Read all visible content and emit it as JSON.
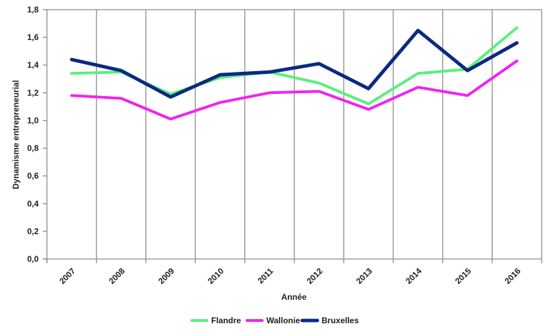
{
  "chart_data": {
    "type": "line",
    "xlabel": "Année",
    "ylabel": "Dynamisme entrepreneurial",
    "ylim": [
      0,
      1.8
    ],
    "yticks": [
      "0,0",
      "0,2",
      "0,4",
      "0,6",
      "0,8",
      "1,0",
      "1,2",
      "1,4",
      "1,6",
      "1,8"
    ],
    "categories": [
      "2007",
      "2008",
      "2009",
      "2010",
      "2011",
      "2012",
      "2013",
      "2014",
      "2015",
      "2016"
    ],
    "grid": "vertical",
    "legend_position": "bottom",
    "series": [
      {
        "name": "Flandre",
        "color": "#57f07e",
        "values": [
          1.34,
          1.35,
          1.19,
          1.31,
          1.35,
          1.27,
          1.12,
          1.34,
          1.37,
          1.67
        ]
      },
      {
        "name": "Wallonie",
        "color": "#f023f0",
        "values": [
          1.18,
          1.16,
          1.01,
          1.13,
          1.2,
          1.21,
          1.08,
          1.24,
          1.18,
          1.43
        ]
      },
      {
        "name": "Bruxelles",
        "color": "#0a2a80",
        "values": [
          1.44,
          1.36,
          1.17,
          1.33,
          1.35,
          1.41,
          1.23,
          1.65,
          1.36,
          1.56
        ]
      }
    ]
  }
}
